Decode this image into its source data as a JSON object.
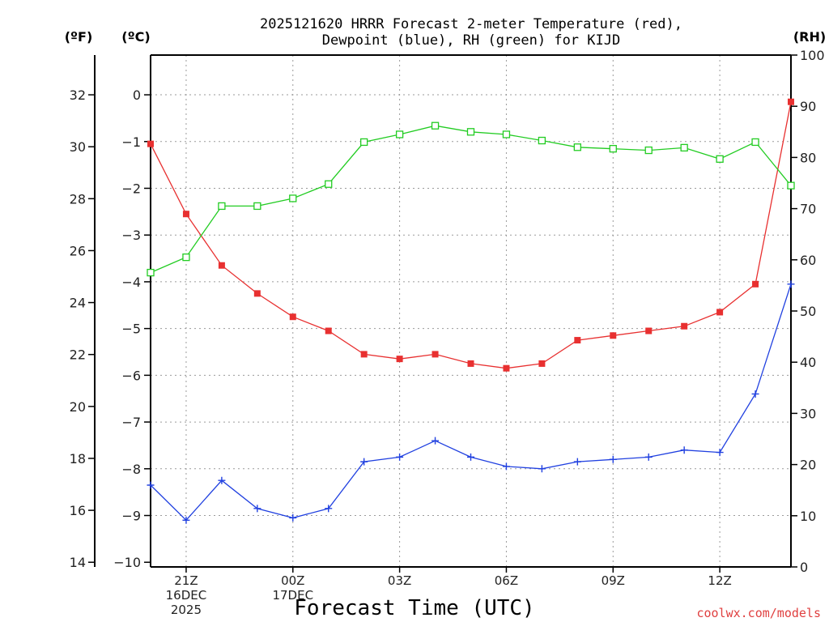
{
  "chart_data": {
    "type": "line",
    "title_lines": [
      "2025121620 HRRR Forecast 2-meter Temperature (red),",
      "Dewpoint (blue), RH (green) for KIJD"
    ],
    "xlabel": "Forecast Time (UTC)",
    "credit": "coolwx.com/models",
    "units": {
      "fahrenheit": "(ºF)",
      "celsius": "(ºC)",
      "rh": "(RH)"
    },
    "x": [
      20,
      21,
      22,
      23,
      24,
      25,
      26,
      27,
      28,
      29,
      30,
      31,
      32,
      33,
      34,
      35,
      36,
      37,
      38
    ],
    "xlim": [
      20,
      38
    ],
    "x_ticks": [
      {
        "x": 21,
        "lines": [
          "21Z",
          "16DEC",
          "2025"
        ]
      },
      {
        "x": 24,
        "lines": [
          "00Z",
          "17DEC"
        ]
      },
      {
        "x": 27,
        "lines": [
          "03Z"
        ]
      },
      {
        "x": 30,
        "lines": [
          "06Z"
        ]
      },
      {
        "x": 33,
        "lines": [
          "09Z"
        ]
      },
      {
        "x": 36,
        "lines": [
          "12Z"
        ]
      }
    ],
    "celsius_axis": {
      "ylim": [
        -10.1,
        0.85
      ],
      "ticks": [
        "0",
        "−1",
        "−2",
        "−3",
        "−4",
        "−5",
        "−6",
        "−7",
        "−8",
        "−9",
        "−10"
      ],
      "tick_values": [
        0,
        -1,
        -2,
        -3,
        -4,
        -5,
        -6,
        -7,
        -8,
        -9,
        -10
      ]
    },
    "fahrenheit_axis": {
      "ticks": [
        "32",
        "30",
        "28",
        "26",
        "24",
        "22",
        "20",
        "18",
        "16",
        "14"
      ],
      "tick_values": [
        32,
        30,
        28,
        26,
        24,
        22,
        20,
        18,
        16,
        14
      ]
    },
    "rh_axis": {
      "ylim": [
        0,
        100
      ],
      "ticks": [
        "100",
        "90",
        "80",
        "70",
        "60",
        "50",
        "40",
        "30",
        "20",
        "10",
        "0"
      ],
      "tick_values": [
        100,
        90,
        80,
        70,
        60,
        50,
        40,
        30,
        20,
        10,
        0
      ]
    },
    "series": [
      {
        "name": "Temperature",
        "unit": "C",
        "color": "#e83030",
        "marker": "filled-square",
        "values": [
          -1.05,
          -2.55,
          -3.65,
          -4.25,
          -4.75,
          -5.05,
          -5.55,
          -5.65,
          -5.55,
          -5.75,
          -5.85,
          -5.75,
          -5.25,
          -5.15,
          -5.05,
          -4.95,
          -4.65,
          -4.05,
          -0.15
        ]
      },
      {
        "name": "Dewpoint",
        "unit": "C",
        "color": "#2040e0",
        "marker": "plus",
        "values": [
          -8.35,
          -9.1,
          -8.25,
          -8.85,
          -9.05,
          -8.85,
          -7.85,
          -7.75,
          -7.4,
          -7.75,
          -7.95,
          -8.0,
          -7.85,
          -7.8,
          -7.75,
          -7.6,
          -7.65,
          -6.4,
          -4.05
        ]
      },
      {
        "name": "RH",
        "unit": "%",
        "color": "#22cc22",
        "marker": "open-square",
        "values": [
          57.5,
          60.5,
          70.5,
          70.5,
          72.0,
          74.8,
          83.0,
          84.5,
          86.2,
          85.0,
          84.5,
          83.3,
          82.0,
          81.7,
          81.4,
          81.9,
          79.7,
          83.0,
          74.5
        ]
      }
    ]
  }
}
